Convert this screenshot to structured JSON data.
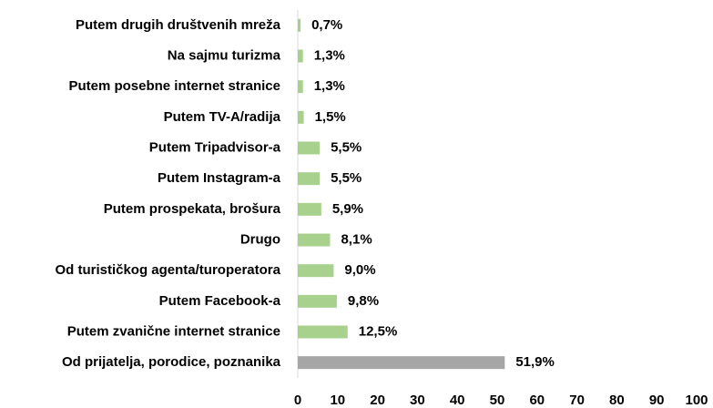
{
  "chart_data": {
    "type": "barh",
    "categories": [
      "Putem drugih društvenih mreža",
      "Na sajmu turizma",
      "Putem posebne internet stranice",
      "Putem TV-A/radija",
      "Putem Tripadvisor-a",
      "Putem Instagram-a",
      "Putem prospekata, brošura",
      "Drugo",
      "Od turističkog agenta/turoperatora",
      "Putem Facebook-a",
      "Putem zvanične internet stranice",
      "Od prijatelja, porodice, poznanika"
    ],
    "values": [
      0.7,
      1.3,
      1.3,
      1.5,
      5.5,
      5.5,
      5.9,
      8.1,
      9.0,
      9.8,
      12.5,
      51.9
    ],
    "value_labels": [
      "0,7%",
      "1,3%",
      "1,3%",
      "1,5%",
      "5,5%",
      "5,5%",
      "5,9%",
      "8,1%",
      "9,0%",
      "9,8%",
      "12,5%",
      "51,9%"
    ],
    "colors": [
      "#a9d18e",
      "#a9d18e",
      "#a9d18e",
      "#a9d18e",
      "#a9d18e",
      "#a9d18e",
      "#a9d18e",
      "#a9d18e",
      "#a9d18e",
      "#a9d18e",
      "#a9d18e",
      "#a6a6a6"
    ],
    "xlim": [
      0,
      100
    ],
    "xticks": [
      0,
      10,
      20,
      30,
      40,
      50,
      60,
      70,
      80,
      90,
      100
    ]
  }
}
